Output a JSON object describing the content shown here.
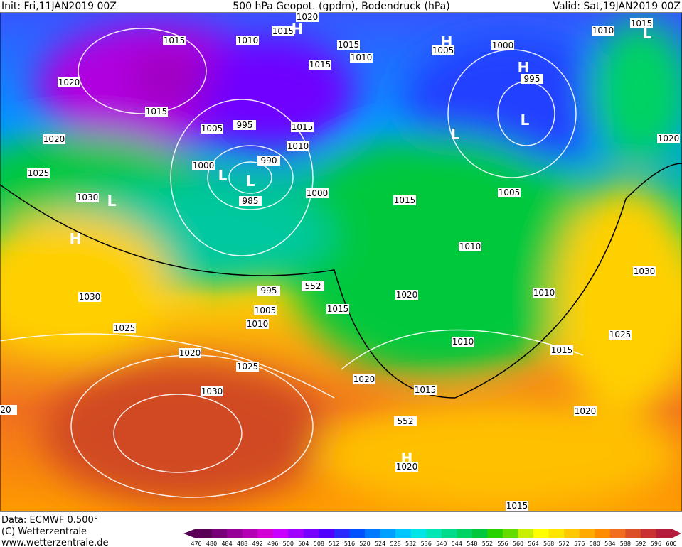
{
  "header": {
    "init": "Init: Fri,11JAN2019 00Z",
    "title": "500 hPa Geopot. (gpdm), Bodendruck (hPa)",
    "valid": "Valid: Sat,19JAN2019 00Z"
  },
  "footer": {
    "data": "Data: ECMWF  0.500°",
    "copyright": "(C) Wetterzentrale",
    "url": "www.wetterzentrale.de"
  },
  "isobar_labels": [
    "1015",
    "1010",
    "1015",
    "1020",
    "1015",
    "1010",
    "1015",
    "1005",
    "1000",
    "1010",
    "1015",
    "995",
    "1020",
    "1015",
    "1005",
    "995",
    "1015",
    "1020",
    "1010",
    "990",
    "1000",
    "1025",
    "985",
    "1000",
    "1005",
    "1015",
    "1020",
    "1030",
    "1010",
    "1030",
    "995",
    "552",
    "1020",
    "1010",
    "1005",
    "1015",
    "1030",
    "1010",
    "1025",
    "1025",
    "1010",
    "1015",
    "1020",
    "1025",
    "1020",
    "1015",
    "1030",
    "1020",
    "552",
    "1020",
    "1015",
    "20"
  ],
  "pressure_centers": [
    "H",
    "H",
    "H",
    "L",
    "L",
    "L",
    "L",
    "L",
    "L",
    "H",
    "H"
  ],
  "colorbar": {
    "ticks": [
      "476",
      "480",
      "484",
      "488",
      "492",
      "496",
      "500",
      "504",
      "508",
      "512",
      "516",
      "520",
      "524",
      "528",
      "532",
      "536",
      "540",
      "544",
      "548",
      "552",
      "556",
      "560",
      "564",
      "568",
      "572",
      "576",
      "580",
      "584",
      "588",
      "592",
      "596",
      "600"
    ],
    "colors": [
      "#5a0057",
      "#780078",
      "#960096",
      "#b400b4",
      "#d200d2",
      "#c800ff",
      "#a000ff",
      "#7800ff",
      "#5000ff",
      "#2828ff",
      "#0050ff",
      "#0078ff",
      "#00a0ff",
      "#00c8ff",
      "#00e6e6",
      "#00e6b4",
      "#00dc8c",
      "#00d264",
      "#00c83c",
      "#28d200",
      "#64dc00",
      "#c8f000",
      "#ffff00",
      "#ffe600",
      "#ffc800",
      "#ffaa00",
      "#ff8c00",
      "#f06e1e",
      "#dc5028",
      "#c83232",
      "#b41e3c"
    ]
  }
}
